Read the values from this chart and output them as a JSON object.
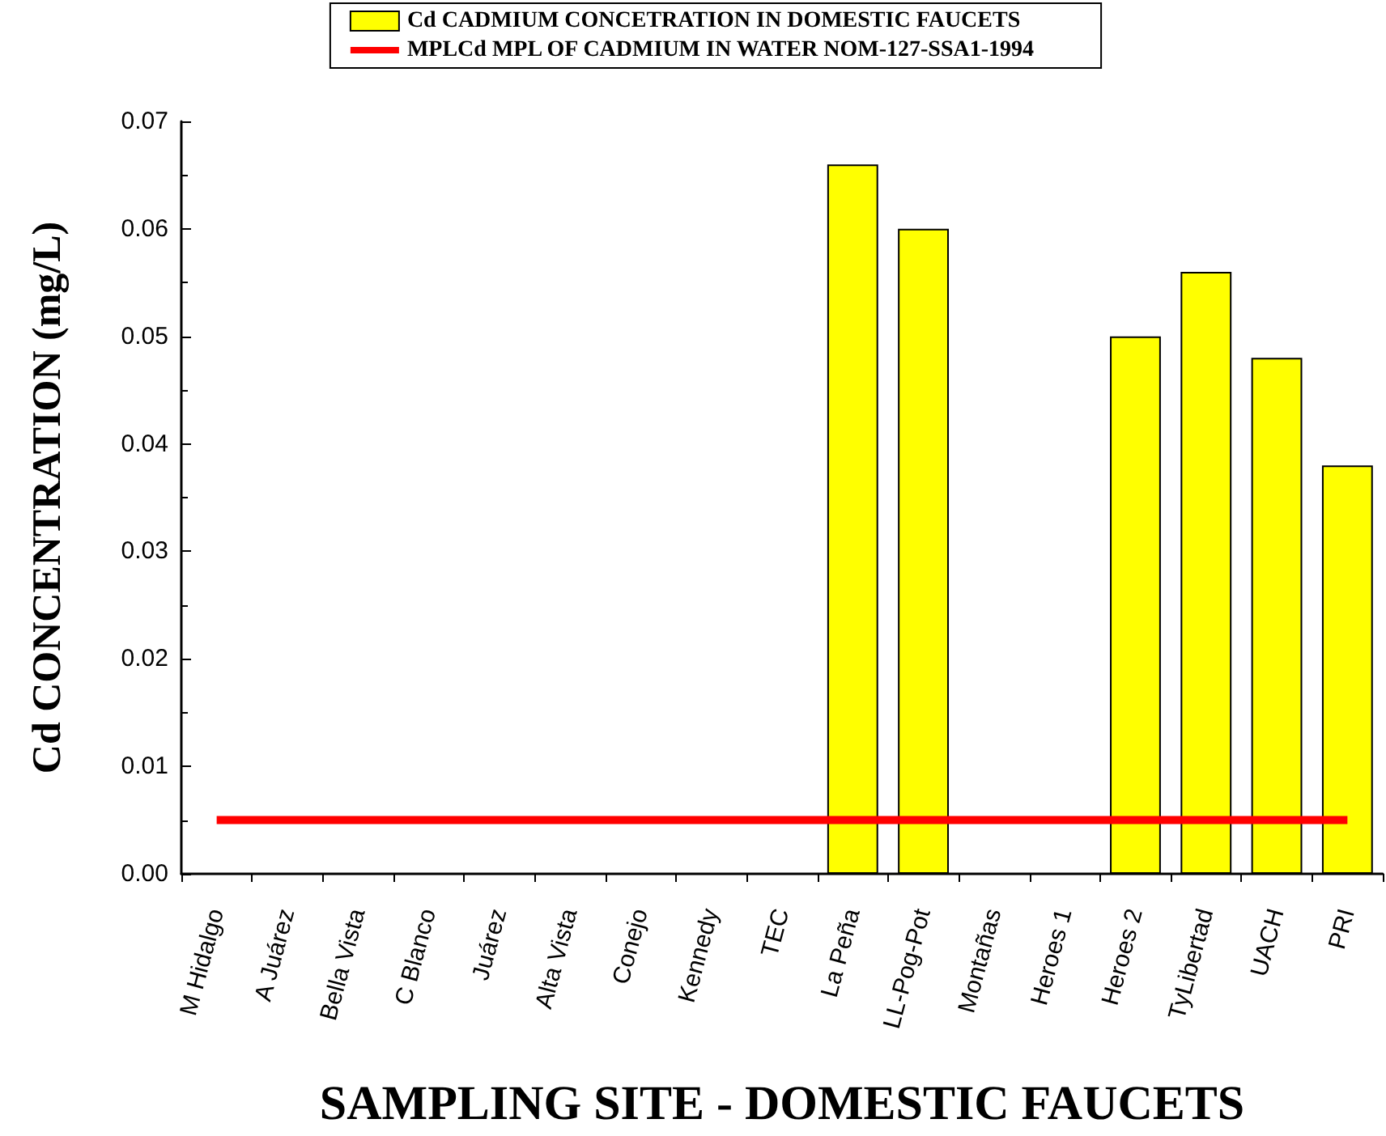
{
  "chart_data": {
    "type": "bar",
    "xlabel": "SAMPLING SITE - DOMESTIC FAUCETS",
    "ylabel": "Cd CONCENTRATION (mg/L)",
    "categories": [
      "M Hidalgo",
      "A Juárez",
      "Bella Vista",
      "C Blanco",
      "Juárez",
      "Alta Vista",
      "Conejo",
      "Kennedy",
      "TEC",
      "La Peña",
      "LL-Pog-Pot",
      "Montañas",
      "Heroes 1",
      "Heroes 2",
      "TyLibertad",
      "UACH",
      "PRI"
    ],
    "series": [
      {
        "name": "Cd CADMIUM CONCETRATION IN DOMESTIC FAUCETS",
        "color": "#ffff00",
        "values": [
          null,
          null,
          null,
          null,
          null,
          null,
          null,
          null,
          null,
          0.066,
          0.06,
          null,
          null,
          0.05,
          0.056,
          0.048,
          0.038
        ]
      },
      {
        "name": "MPLCd MPL OF CADMIUM IN WATER NOM-127-SSA1-1994",
        "type": "line",
        "color": "#ff0000",
        "values": [
          0.005,
          0.005,
          0.005,
          0.005,
          0.005,
          0.005,
          0.005,
          0.005,
          0.005,
          0.005,
          0.005,
          0.005,
          0.005,
          0.005,
          0.005,
          0.005,
          0.005
        ]
      }
    ],
    "ylim": [
      0,
      0.07
    ],
    "yticks": [
      {
        "value": 0,
        "label": "0.00"
      },
      {
        "value": 0.01,
        "label": "0.01"
      },
      {
        "value": 0.02,
        "label": "0.02"
      },
      {
        "value": 0.03,
        "label": "0.03"
      },
      {
        "value": 0.04,
        "label": "0.04"
      },
      {
        "value": 0.05,
        "label": "0.05"
      },
      {
        "value": 0.06,
        "label": "0.06"
      },
      {
        "value": 0.07,
        "label": "0.07"
      }
    ],
    "grid": false,
    "legend": "top",
    "marker": "none"
  }
}
